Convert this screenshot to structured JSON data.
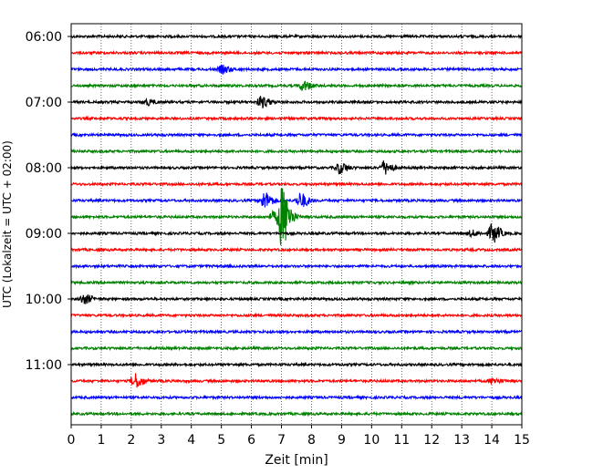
{
  "chart_data": {
    "type": "line",
    "title": "",
    "xlabel": "Zeit  [min]",
    "ylabel": "UTC (Lokalzeit = UTC + 02:00)",
    "xlim": [
      0,
      15
    ],
    "x_ticks": [
      "0",
      "1",
      "2",
      "3",
      "4",
      "5",
      "6",
      "7",
      "8",
      "9",
      "10",
      "11",
      "12",
      "13",
      "14",
      "15"
    ],
    "y_ticks": [
      "06:00",
      "07:00",
      "08:00",
      "09:00",
      "10:00",
      "11:00"
    ],
    "grid": "vertical dotted",
    "legend": "none",
    "trace_interval_min": 15,
    "first_trace": "06:00",
    "series": [
      {
        "start": "06:00",
        "color": "#000000",
        "events": []
      },
      {
        "start": "06:15",
        "color": "#ff0000",
        "events": []
      },
      {
        "start": "06:30",
        "color": "#0000ff",
        "events": [
          {
            "t": 5.0,
            "amp": 4
          }
        ]
      },
      {
        "start": "06:45",
        "color": "#008000",
        "events": [
          {
            "t": 7.7,
            "amp": 5
          }
        ]
      },
      {
        "start": "07:00",
        "color": "#000000",
        "events": [
          {
            "t": 6.3,
            "amp": 6
          },
          {
            "t": 2.5,
            "amp": 3
          }
        ]
      },
      {
        "start": "07:15",
        "color": "#ff0000",
        "events": []
      },
      {
        "start": "07:30",
        "color": "#0000ff",
        "events": []
      },
      {
        "start": "07:45",
        "color": "#008000",
        "events": []
      },
      {
        "start": "08:00",
        "color": "#000000",
        "events": [
          {
            "t": 8.9,
            "amp": 6
          },
          {
            "t": 10.4,
            "amp": 7
          }
        ]
      },
      {
        "start": "08:15",
        "color": "#ff0000",
        "events": []
      },
      {
        "start": "08:30",
        "color": "#0000ff",
        "events": [
          {
            "t": 6.4,
            "amp": 9
          },
          {
            "t": 7.6,
            "amp": 8
          }
        ]
      },
      {
        "start": "08:45",
        "color": "#008000",
        "events": [
          {
            "t": 6.7,
            "amp": 5
          },
          {
            "t": 7.0,
            "amp": 32
          }
        ]
      },
      {
        "start": "09:00",
        "color": "#000000",
        "events": [
          {
            "t": 14.0,
            "amp": 10
          },
          {
            "t": 13.3,
            "amp": 3
          }
        ]
      },
      {
        "start": "09:15",
        "color": "#ff0000",
        "events": []
      },
      {
        "start": "09:30",
        "color": "#0000ff",
        "events": []
      },
      {
        "start": "09:45",
        "color": "#008000",
        "events": []
      },
      {
        "start": "10:00",
        "color": "#000000",
        "events": [
          {
            "t": 0.4,
            "amp": 5
          }
        ]
      },
      {
        "start": "10:15",
        "color": "#ff0000",
        "events": []
      },
      {
        "start": "10:30",
        "color": "#0000ff",
        "events": []
      },
      {
        "start": "10:45",
        "color": "#008000",
        "events": []
      },
      {
        "start": "11:00",
        "color": "#000000",
        "events": []
      },
      {
        "start": "11:15",
        "color": "#ff0000",
        "events": [
          {
            "t": 2.1,
            "amp": 8
          },
          {
            "t": 14.0,
            "amp": 3
          }
        ]
      },
      {
        "start": "11:30",
        "color": "#0000ff",
        "events": []
      },
      {
        "start": "11:45",
        "color": "#008000",
        "events": []
      }
    ]
  }
}
